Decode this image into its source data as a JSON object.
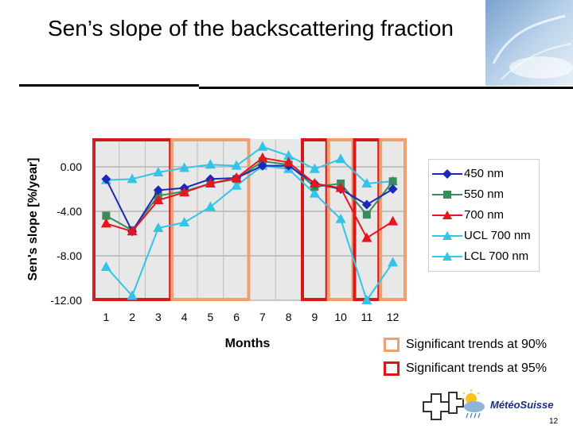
{
  "slide": {
    "title": "Sen’s slope of the backscattering fraction",
    "page_number": "12"
  },
  "chart_data": {
    "type": "line",
    "title": "",
    "xlabel": "Months",
    "ylabel": "Sen's slope [%/year]",
    "categories": [
      "1",
      "2",
      "3",
      "4",
      "5",
      "6",
      "7",
      "8",
      "9",
      "10",
      "11",
      "12"
    ],
    "ylim": [
      -12,
      2.5
    ],
    "yticks": [
      0,
      -4,
      -8,
      -12
    ],
    "ytick_labels": [
      "0.00",
      "-4.00",
      "-8.00",
      "-12.00"
    ],
    "grid": true,
    "series": [
      {
        "name": "450 nm",
        "color": "#1d28b8",
        "marker": "diamond",
        "values": [
          -1.1,
          -5.8,
          -2.1,
          -1.9,
          -1.1,
          -1.0,
          0.1,
          0.1,
          -1.5,
          -2.0,
          -3.4,
          -2.0
        ]
      },
      {
        "name": "550 nm",
        "color": "#3a8c5c",
        "marker": "square",
        "values": [
          -4.4,
          -5.7,
          -2.6,
          -2.2,
          -1.5,
          -1.1,
          0.5,
          0.2,
          -1.8,
          -1.5,
          -4.3,
          -1.3
        ]
      },
      {
        "name": "700 nm",
        "color": "#e8141e",
        "marker": "triangle",
        "values": [
          -5.1,
          -5.8,
          -3.0,
          -2.3,
          -1.5,
          -1.0,
          0.8,
          0.4,
          -1.5,
          -1.9,
          -6.4,
          -4.9
        ]
      },
      {
        "name": "UCL 700 nm",
        "color": "#33c4e8",
        "marker": "triangle",
        "values": [
          -1.2,
          -1.1,
          -0.5,
          -0.1,
          0.2,
          0.1,
          1.8,
          1.0,
          -0.2,
          0.7,
          -1.5,
          -1.3
        ]
      },
      {
        "name": "LCL 700 nm",
        "color": "#33c4e8",
        "marker": "triangle",
        "values": [
          -9.0,
          -11.6,
          -5.5,
          -5.0,
          -3.6,
          -1.7,
          0.1,
          -0.2,
          -2.4,
          -4.7,
          -12.0,
          -8.6
        ]
      }
    ],
    "highlight_boxes": [
      {
        "level": "95%",
        "from": 1,
        "to": 3
      },
      {
        "level": "90%",
        "from": 4,
        "to": 6
      },
      {
        "level": "95%",
        "from": 9,
        "to": 9
      },
      {
        "level": "90%",
        "from": 10,
        "to": 10
      },
      {
        "level": "95%",
        "from": 11,
        "to": 11
      },
      {
        "level": "90%",
        "from": 12,
        "to": 12
      }
    ],
    "significance_legend": [
      {
        "label": "Significant trends at 90%",
        "color": "#f0a070"
      },
      {
        "label": "Significant trends at 95%",
        "color": "#d81818"
      }
    ]
  },
  "logo": {
    "text": "MétéoSuisse"
  }
}
